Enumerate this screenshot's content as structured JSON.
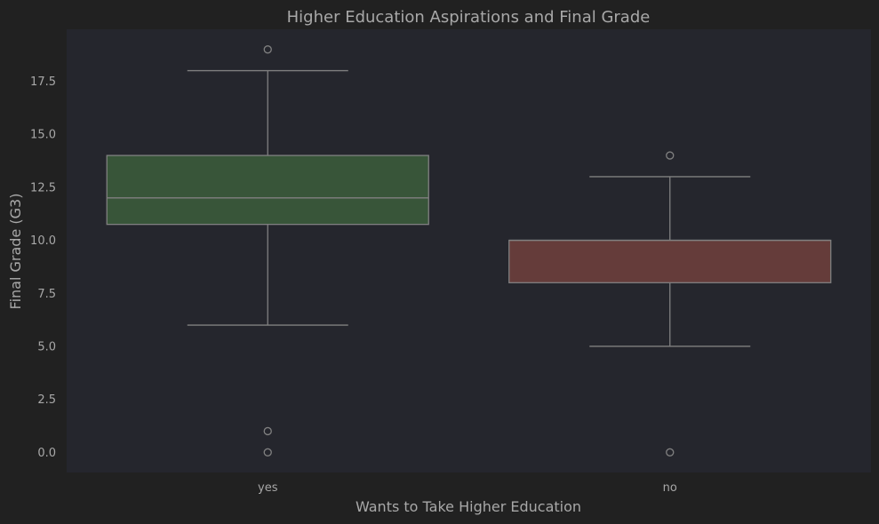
{
  "chart_data": {
    "type": "box",
    "title": "Higher Education Aspirations and Final Grade",
    "xlabel": "Wants to Take Higher Education",
    "ylabel": "Final Grade (G3)",
    "ylim": [
      -0.95,
      19.95
    ],
    "yticks": [
      "0.0",
      "2.5",
      "5.0",
      "7.5",
      "10.0",
      "12.5",
      "15.0",
      "17.5"
    ],
    "categories": [
      "yes",
      "no"
    ],
    "boxes": [
      {
        "category": "yes",
        "whisker_low": 6,
        "q1": 10.75,
        "median": 12,
        "q3": 14,
        "whisker_high": 18,
        "outliers": [
          19,
          1,
          0
        ],
        "color": "#385539"
      },
      {
        "category": "no",
        "whisker_low": 5,
        "q1": 8,
        "median": 10,
        "q3": 10,
        "whisker_high": 13,
        "outliers": [
          14,
          0
        ],
        "color": "#653c3a"
      }
    ],
    "grid": false,
    "legend": "none",
    "colors": {
      "figure_bg": "#212121",
      "plot_bg": "#25262d",
      "line": "#808080",
      "text": "#a8a8a8"
    }
  }
}
